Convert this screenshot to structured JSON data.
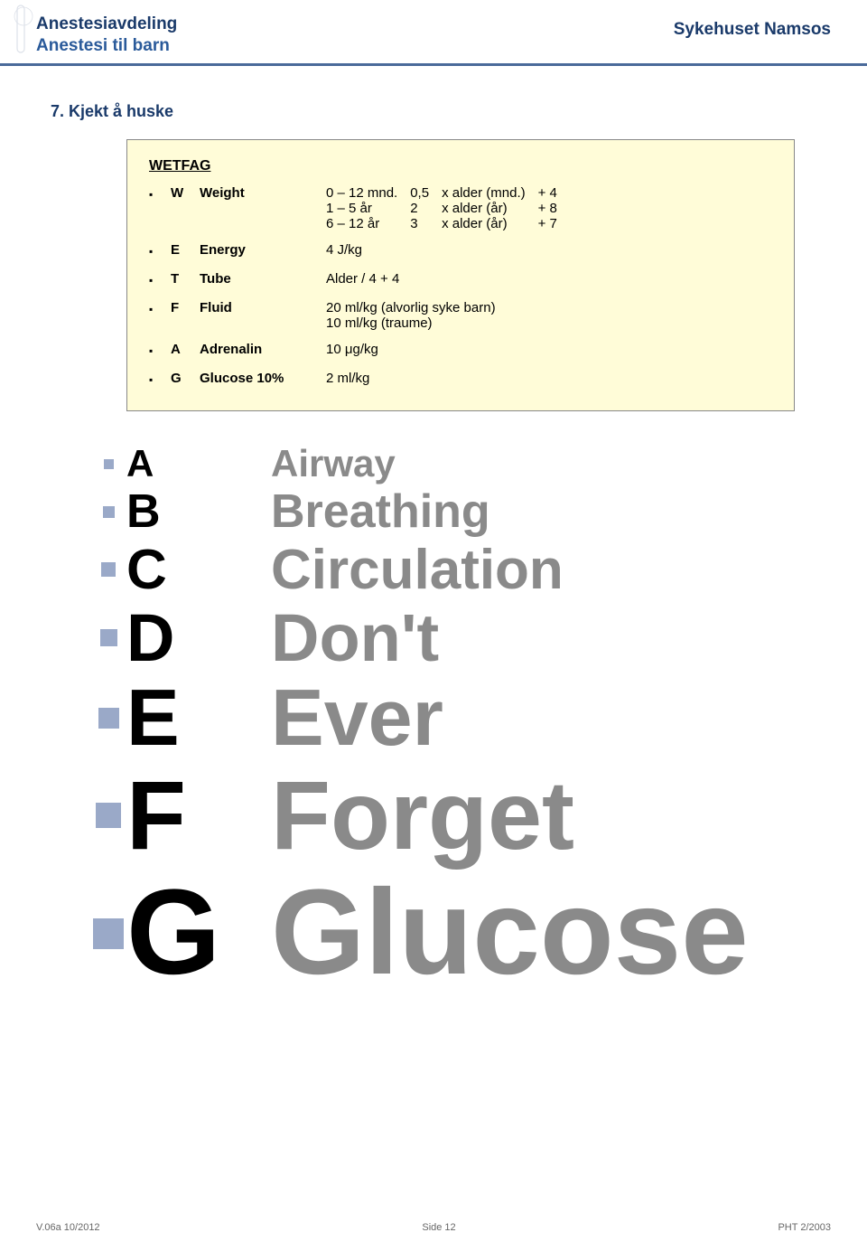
{
  "header": {
    "department": "Anestesiavdeling",
    "sub": "Anestesi til barn",
    "hospital": "Sykehuset Namsos"
  },
  "section_title": "7. Kjekt å huske",
  "wetfag": {
    "title": "WETFAG",
    "rows": [
      {
        "letter": "W",
        "label": "Weight",
        "weight_rows": [
          {
            "age": "0 – 12 mnd.",
            "mult": "0,5",
            "by": "x  alder (mnd.)",
            "add": "+ 4"
          },
          {
            "age": "1 – 5 år",
            "mult": "2",
            "by": "x  alder (år)",
            "add": "+ 8"
          },
          {
            "age": "6 – 12 år",
            "mult": "3",
            "by": "x  alder (år)",
            "add": "+ 7"
          }
        ]
      },
      {
        "letter": "E",
        "label": "Energy",
        "value": "4 J/kg"
      },
      {
        "letter": "T",
        "label": "Tube",
        "value": "Alder / 4 + 4"
      },
      {
        "letter": "F",
        "label": "Fluid",
        "value": "20 ml/kg (alvorlig syke barn)",
        "value2": "10 ml/kg (traume)"
      },
      {
        "letter": "A",
        "label": "Adrenalin",
        "value": "10 μg/kg"
      },
      {
        "letter": "G",
        "label": "Glucose 10%",
        "value": "2 ml/kg"
      }
    ]
  },
  "abc": [
    {
      "letter": "A",
      "word": "Airway",
      "size": 42,
      "sq": 11
    },
    {
      "letter": "B",
      "word": "Breathing",
      "size": 52,
      "sq": 13
    },
    {
      "letter": "C",
      "word": "Circulation",
      "size": 62,
      "sq": 16
    },
    {
      "letter": "D",
      "word": "Don't",
      "size": 74,
      "sq": 19
    },
    {
      "letter": "E",
      "word": "Ever",
      "size": 88,
      "sq": 23
    },
    {
      "letter": "F",
      "word": "Forget",
      "size": 108,
      "sq": 28
    },
    {
      "letter": "G",
      "word": "Glucose",
      "size": 134,
      "sq": 34
    }
  ],
  "footer": {
    "left": "V.06a 10/2012",
    "center": "Side 12",
    "right": "PHT 2/2003"
  },
  "colors": {
    "header_text": "#1a3a6a",
    "sub_text": "#2a5a9a",
    "rule": "#4a6a9a",
    "box_bg": "#fffcd8",
    "abc_word": "#8a8a8a",
    "abc_bullet": "#9aa9c8"
  }
}
